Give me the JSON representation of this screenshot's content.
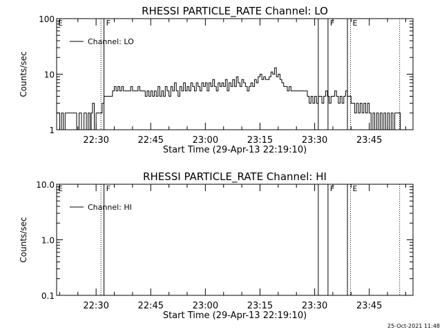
{
  "chart_data": [
    {
      "type": "line",
      "title": "RHESSI PARTICLE_RATE Channel: LO",
      "xlabel": "Start Time (29-Apr-13 22:19:10)",
      "ylabel": "Counts/sec",
      "y_scale": "log",
      "xlim": [
        "22:19:10",
        "23:57:00"
      ],
      "ylim": [
        1,
        100
      ],
      "x_ticks": [
        "22:30",
        "22:45",
        "23:00",
        "23:15",
        "23:30",
        "23:45"
      ],
      "y_ticks": [
        "1",
        "10",
        "100"
      ],
      "legend": {
        "placement": "top-left",
        "entries": [
          "Channel: LO"
        ]
      },
      "markers": [
        {
          "time": "22:31:20",
          "style": "dotted",
          "label": ""
        },
        {
          "time": "22:32:10",
          "style": "solid",
          "label": "F"
        },
        {
          "time": "23:31:00",
          "style": "solid",
          "label": ""
        },
        {
          "time": "23:33:40",
          "style": "solid",
          "label": "F"
        },
        {
          "time": "23:39:00",
          "style": "solid",
          "label": ""
        },
        {
          "time": "23:39:50",
          "style": "dotted",
          "label": "E"
        },
        {
          "time": "23:53:20",
          "style": "dotted",
          "label": ""
        }
      ],
      "edge_labels": [
        {
          "text": "E",
          "position": "top-left"
        }
      ],
      "series": [
        {
          "values": [
            [
              "22:19:10",
              2
            ],
            [
              "22:20:00",
              1
            ],
            [
              "22:20:30",
              2
            ],
            [
              "22:21:00",
              1
            ],
            [
              "22:21:30",
              2
            ],
            [
              "22:24:00",
              2
            ],
            [
              "22:24:40",
              1
            ],
            [
              "22:25:20",
              2
            ],
            [
              "22:26:00",
              1
            ],
            [
              "22:26:40",
              2
            ],
            [
              "22:27:20",
              1
            ],
            [
              "22:27:50",
              2
            ],
            [
              "22:28:20",
              1
            ],
            [
              "22:28:40",
              2
            ],
            [
              "22:29:00",
              3
            ],
            [
              "22:29:30",
              1
            ],
            [
              "22:30:00",
              2
            ],
            [
              "22:31:00",
              2
            ],
            [
              "22:31:40",
              3
            ],
            [
              "22:32:10",
              4
            ],
            [
              "22:34:00",
              4
            ],
            [
              "22:34:30",
              5
            ],
            [
              "22:35:00",
              6
            ],
            [
              "22:35:30",
              5
            ],
            [
              "22:36:00",
              6
            ],
            [
              "22:36:30",
              5
            ],
            [
              "22:37:00",
              6
            ],
            [
              "22:37:30",
              5
            ],
            [
              "22:38:00",
              5
            ],
            [
              "22:39:00",
              5
            ],
            [
              "22:39:30",
              6
            ],
            [
              "22:40:00",
              5
            ],
            [
              "22:41:00",
              5
            ],
            [
              "22:41:30",
              6
            ],
            [
              "22:42:00",
              5
            ],
            [
              "22:43:00",
              5
            ],
            [
              "22:43:30",
              4
            ],
            [
              "22:44:00",
              5
            ],
            [
              "22:44:30",
              4
            ],
            [
              "22:45:00",
              5
            ],
            [
              "22:45:30",
              4
            ],
            [
              "22:46:00",
              5
            ],
            [
              "22:46:30",
              4
            ],
            [
              "22:47:00",
              6
            ],
            [
              "22:47:30",
              4
            ],
            [
              "22:48:00",
              5
            ],
            [
              "22:48:30",
              4
            ],
            [
              "22:49:00",
              6
            ],
            [
              "22:49:30",
              5
            ],
            [
              "22:50:00",
              4
            ],
            [
              "22:50:30",
              6
            ],
            [
              "22:51:00",
              5
            ],
            [
              "22:51:30",
              7
            ],
            [
              "22:52:00",
              5
            ],
            [
              "22:52:30",
              4
            ],
            [
              "22:53:00",
              6
            ],
            [
              "22:53:30",
              5
            ],
            [
              "22:54:00",
              7
            ],
            [
              "22:54:30",
              5
            ],
            [
              "22:55:00",
              6
            ],
            [
              "22:55:30",
              5
            ],
            [
              "22:56:00",
              7
            ],
            [
              "22:56:30",
              6
            ],
            [
              "22:57:00",
              5
            ],
            [
              "22:57:30",
              7
            ],
            [
              "22:58:00",
              6
            ],
            [
              "22:58:30",
              5
            ],
            [
              "22:59:00",
              7
            ],
            [
              "22:59:30",
              6
            ],
            [
              "23:00:00",
              7
            ],
            [
              "23:00:30",
              5
            ],
            [
              "23:01:00",
              7
            ],
            [
              "23:01:30",
              6
            ],
            [
              "23:02:00",
              8
            ],
            [
              "23:02:30",
              6
            ],
            [
              "23:03:00",
              5
            ],
            [
              "23:03:30",
              7
            ],
            [
              "23:04:00",
              6
            ],
            [
              "23:04:30",
              7
            ],
            [
              "23:05:00",
              6
            ],
            [
              "23:05:30",
              8
            ],
            [
              "23:06:00",
              5
            ],
            [
              "23:06:30",
              7
            ],
            [
              "23:07:00",
              6
            ],
            [
              "23:07:30",
              8
            ],
            [
              "23:08:00",
              6
            ],
            [
              "23:08:30",
              9
            ],
            [
              "23:09:00",
              7
            ],
            [
              "23:09:30",
              6
            ],
            [
              "23:10:00",
              8
            ],
            [
              "23:10:30",
              7
            ],
            [
              "23:11:00",
              6
            ],
            [
              "23:11:30",
              5
            ],
            [
              "23:12:00",
              6
            ],
            [
              "23:12:30",
              7
            ],
            [
              "23:13:00",
              6
            ],
            [
              "23:13:30",
              8
            ],
            [
              "23:14:00",
              7
            ],
            [
              "23:14:30",
              9
            ],
            [
              "23:15:00",
              10
            ],
            [
              "23:15:30",
              8
            ],
            [
              "23:16:00",
              9
            ],
            [
              "23:16:30",
              8
            ],
            [
              "23:17:00",
              8
            ],
            [
              "23:17:30",
              9
            ],
            [
              "23:18:00",
              11
            ],
            [
              "23:18:30",
              10
            ],
            [
              "23:19:00",
              13
            ],
            [
              "23:19:30",
              9
            ],
            [
              "23:20:00",
              10
            ],
            [
              "23:20:30",
              8
            ],
            [
              "23:21:00",
              7
            ],
            [
              "23:21:30",
              6
            ],
            [
              "23:22:00",
              6
            ],
            [
              "23:22:30",
              5
            ],
            [
              "23:23:00",
              6
            ],
            [
              "23:23:30",
              5
            ],
            [
              "23:24:00",
              5
            ],
            [
              "23:27:00",
              5
            ],
            [
              "23:27:30",
              5
            ],
            [
              "23:28:00",
              4
            ],
            [
              "23:28:30",
              3
            ],
            [
              "23:29:00",
              4
            ],
            [
              "23:29:30",
              3
            ],
            [
              "23:30:00",
              4
            ],
            [
              "23:30:30",
              3
            ],
            [
              "23:31:00",
              4
            ],
            [
              "23:31:30",
              4
            ],
            [
              "23:32:00",
              3
            ],
            [
              "23:32:30",
              4
            ],
            [
              "23:33:00",
              5
            ],
            [
              "23:33:30",
              4
            ],
            [
              "23:34:00",
              3
            ],
            [
              "23:34:30",
              4
            ],
            [
              "23:35:00",
              4
            ],
            [
              "23:35:30",
              5
            ],
            [
              "23:36:00",
              4
            ],
            [
              "23:36:30",
              3
            ],
            [
              "23:37:00",
              4
            ],
            [
              "23:37:30",
              3
            ],
            [
              "23:38:00",
              4
            ],
            [
              "23:38:30",
              5
            ],
            [
              "23:39:00",
              4
            ],
            [
              "23:39:30",
              4
            ],
            [
              "23:40:00",
              3
            ],
            [
              "23:40:30",
              3
            ],
            [
              "23:41:00",
              2
            ],
            [
              "23:41:30",
              3
            ],
            [
              "23:42:00",
              2
            ],
            [
              "23:42:30",
              3
            ],
            [
              "23:43:00",
              2
            ],
            [
              "23:43:30",
              3
            ],
            [
              "23:44:00",
              2
            ],
            [
              "23:44:30",
              3
            ],
            [
              "23:45:00",
              2
            ],
            [
              "23:45:30",
              1
            ],
            [
              "23:46:00",
              2
            ],
            [
              "23:46:30",
              1
            ],
            [
              "23:47:00",
              2
            ],
            [
              "23:47:30",
              1
            ],
            [
              "23:48:00",
              2
            ],
            [
              "23:48:30",
              1
            ],
            [
              "23:49:00",
              2
            ],
            [
              "23:49:30",
              1
            ],
            [
              "23:50:00",
              2
            ],
            [
              "23:50:30",
              1
            ],
            [
              "23:51:00",
              2
            ],
            [
              "23:51:30",
              1
            ],
            [
              "23:52:00",
              2
            ],
            [
              "23:53:00",
              2
            ],
            [
              "23:53:30",
              1
            ]
          ]
        }
      ]
    },
    {
      "type": "line",
      "title": "RHESSI PARTICLE_RATE Channel: HI",
      "xlabel": "Start Time (29-Apr-13 22:19:10)",
      "ylabel": "Counts/sec",
      "y_scale": "log",
      "xlim": [
        "22:19:10",
        "23:57:00"
      ],
      "ylim": [
        0.1,
        10
      ],
      "x_ticks": [
        "22:30",
        "22:45",
        "23:00",
        "23:15",
        "23:30",
        "23:45"
      ],
      "y_ticks": [
        "0.1",
        "1.0",
        "10.0"
      ],
      "legend": {
        "placement": "top-left",
        "entries": [
          "Channel: HI"
        ]
      },
      "markers": [
        {
          "time": "22:31:20",
          "style": "dotted",
          "label": ""
        },
        {
          "time": "22:32:10",
          "style": "solid",
          "label": "F"
        },
        {
          "time": "23:31:00",
          "style": "solid",
          "label": ""
        },
        {
          "time": "23:33:40",
          "style": "solid",
          "label": "F"
        },
        {
          "time": "23:39:00",
          "style": "solid",
          "label": ""
        },
        {
          "time": "23:39:50",
          "style": "dotted",
          "label": "E"
        },
        {
          "time": "23:53:20",
          "style": "dotted",
          "label": ""
        }
      ],
      "edge_labels": [
        {
          "text": "E",
          "position": "top-left"
        }
      ],
      "series": [
        {
          "values": []
        }
      ]
    }
  ],
  "footer": {
    "timestamp": "25-Oct-2021 11:48"
  }
}
